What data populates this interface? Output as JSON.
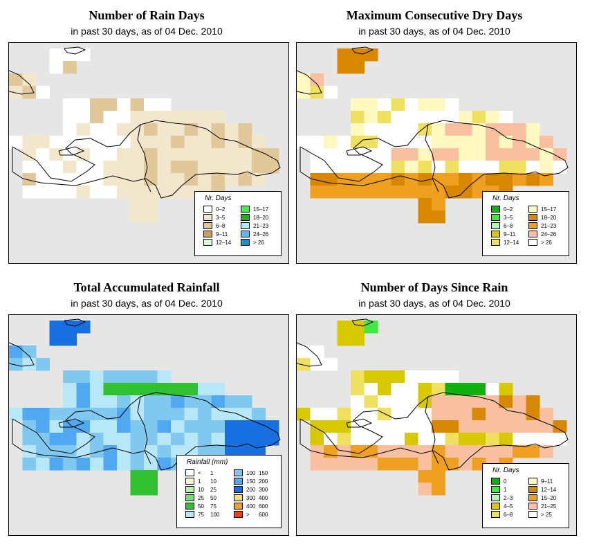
{
  "panels": [
    {
      "id": "rain-days",
      "title": "Number of Rain Days",
      "subtitle": "in past 30 days, as of  04 Dec. 2010",
      "legend": {
        "title": "Nr. Days",
        "items": [
          {
            "label": "0–2",
            "color": "#ffffff"
          },
          {
            "label": "3–5",
            "color": "#f2e6cc"
          },
          {
            "label": "6–8",
            "color": "#e0c89a"
          },
          {
            "label": "9–11",
            "color": "#c8a050"
          },
          {
            "label": "12–14",
            "color": "#d8f8d8"
          },
          {
            "label": "15–17",
            "color": "#40f040"
          },
          {
            "label": "18–20",
            "color": "#20b020"
          },
          {
            "label": "21–23",
            "color": "#b0e8f8"
          },
          {
            "label": "24–26",
            "color": "#60b8f0"
          },
          {
            "label": "> 26",
            "color": "#1890d0"
          }
        ]
      }
    },
    {
      "id": "dry-days",
      "title": "Maximum Consecutive Dry Days",
      "subtitle": "in past 30 days, as of  04 Dec. 2010",
      "legend": {
        "title": "Nr. Days",
        "items": [
          {
            "label": "0–2",
            "color": "#10b010"
          },
          {
            "label": "3–5",
            "color": "#40e840"
          },
          {
            "label": "6–8",
            "color": "#b8f0c0"
          },
          {
            "label": "9–11",
            "color": "#d8c800"
          },
          {
            "label": "12–14",
            "color": "#f0e060"
          },
          {
            "label": "15–17",
            "color": "#fff8c0"
          },
          {
            "label": "18–20",
            "color": "#d88800"
          },
          {
            "label": "21–23",
            "color": "#f0a020"
          },
          {
            "label": "24–26",
            "color": "#f8c0a0"
          },
          {
            "label": "> 26",
            "color": "#ffffff"
          }
        ]
      }
    },
    {
      "id": "rainfall",
      "title": "Total Accumulated Rainfall",
      "subtitle": "in past 30 days, as of  04 Dec. 2010",
      "legend": {
        "title": "Rainfall (mm)",
        "items": [
          {
            "lo": "<",
            "hi": "1",
            "color": "#ffffff"
          },
          {
            "lo": "1",
            "hi": "10",
            "color": "#f8f0d0"
          },
          {
            "lo": "10",
            "hi": "25",
            "color": "#b8f0b0"
          },
          {
            "lo": "25",
            "hi": "50",
            "color": "#70e070"
          },
          {
            "lo": "50",
            "hi": "75",
            "color": "#30c030"
          },
          {
            "lo": "75",
            "hi": "100",
            "color": "#b8e8f8"
          },
          {
            "lo": "100",
            "hi": "150",
            "color": "#80c8f0"
          },
          {
            "lo": "150",
            "hi": "200",
            "color": "#50a8f0"
          },
          {
            "lo": "200",
            "hi": "300",
            "color": "#1870e0"
          },
          {
            "lo": "300",
            "hi": "400",
            "color": "#f8e070"
          },
          {
            "lo": "400",
            "hi": "600",
            "color": "#f0a020"
          },
          {
            "lo": ">",
            "hi": "600",
            "color": "#f04010"
          }
        ]
      }
    },
    {
      "id": "days-since-rain",
      "title": "Number of Days Since Rain",
      "subtitle": "in past 30 days, as of  04 Dec. 2010",
      "legend": {
        "title": "Nr. Days",
        "items": [
          {
            "label": "0",
            "color": "#10b010"
          },
          {
            "label": "1",
            "color": "#40e840"
          },
          {
            "label": "2–3",
            "color": "#b8f0c0"
          },
          {
            "label": "4–5",
            "color": "#d8c800"
          },
          {
            "label": "6–8",
            "color": "#f0e060"
          },
          {
            "label": "9–11",
            "color": "#fff8c0"
          },
          {
            "label": "12–14",
            "color": "#d88800"
          },
          {
            "label": "15–20",
            "color": "#f0a020"
          },
          {
            "label": "21–25",
            "color": "#f8c0a0"
          },
          {
            "label": "> 25",
            "color": "#ffffff"
          }
        ]
      }
    }
  ]
}
